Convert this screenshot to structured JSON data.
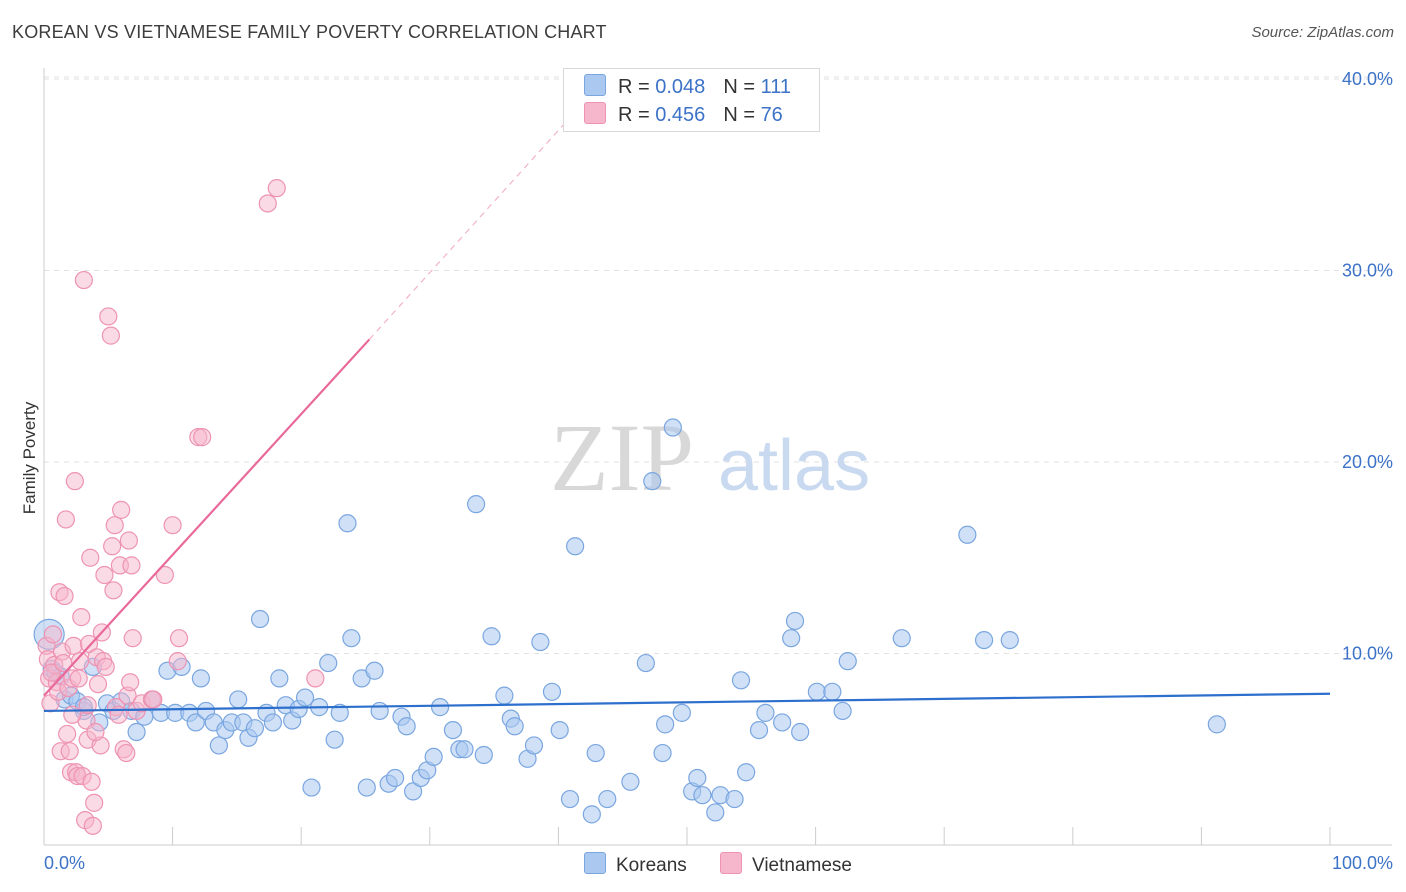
{
  "title": "KOREAN VS VIETNAMESE FAMILY POVERTY CORRELATION CHART",
  "source": "Source: ZipAtlas.com",
  "watermark": {
    "zip": "ZIP",
    "atlas": "atlas"
  },
  "legend": {
    "rows": [
      {
        "r_label": "R = ",
        "r_value": "0.048",
        "n_label": "N = ",
        "n_value": "111"
      },
      {
        "r_label": "R = ",
        "r_value": "0.456",
        "n_label": "N = ",
        "n_value": "76"
      }
    ]
  },
  "bottom_legend": {
    "koreans": "Koreans",
    "vietnamese": "Vietnamese"
  },
  "colors": {
    "korean_fill": "#aac8f0",
    "korean_stroke": "#7aa6e0",
    "korean_line": "#2d6fcc",
    "viet_fill": "#f6b6cb",
    "viet_stroke": "#ee93b3",
    "viet_line": "#e8699a",
    "axis_label": "#3c72c7",
    "grid": "#e2e2e2"
  },
  "chart_data": {
    "type": "scatter",
    "title": "KOREAN VS VIETNAMESE FAMILY POVERTY CORRELATION CHART",
    "xlabel": "",
    "ylabel": "Family Poverty",
    "xlim": [
      0,
      100
    ],
    "ylim": [
      0,
      42
    ],
    "x_tick_labels": [
      "0.0%",
      "100.0%"
    ],
    "y_ticks": [
      10,
      20,
      30,
      40
    ],
    "y_tick_labels": [
      "10.0%",
      "20.0%",
      "30.0%",
      "40.0%"
    ],
    "series": [
      {
        "name": "Koreans",
        "R": 0.048,
        "N": 111,
        "trend": {
          "x": [
            0,
            100
          ],
          "y": [
            7.0,
            7.9
          ]
        },
        "points": [
          [
            0.4,
            11.0
          ],
          [
            0.6,
            9.2
          ],
          [
            0.9,
            9.0
          ],
          [
            1.3,
            8.8
          ],
          [
            1.6,
            7.6
          ],
          [
            2.1,
            7.8
          ],
          [
            2.6,
            7.5
          ],
          [
            3.1,
            7.0
          ],
          [
            3.8,
            9.3
          ],
          [
            4.3,
            6.4
          ],
          [
            4.9,
            7.4
          ],
          [
            5.4,
            7.0
          ],
          [
            6.0,
            7.5
          ],
          [
            6.8,
            7.0
          ],
          [
            7.2,
            5.9
          ],
          [
            7.8,
            6.7
          ],
          [
            8.4,
            7.6
          ],
          [
            9.1,
            6.9
          ],
          [
            9.6,
            9.1
          ],
          [
            10.2,
            6.9
          ],
          [
            10.7,
            9.3
          ],
          [
            11.3,
            6.9
          ],
          [
            11.8,
            6.4
          ],
          [
            12.2,
            8.7
          ],
          [
            12.6,
            7.0
          ],
          [
            13.2,
            6.4
          ],
          [
            13.6,
            5.2
          ],
          [
            14.1,
            6.0
          ],
          [
            14.6,
            6.4
          ],
          [
            15.1,
            7.6
          ],
          [
            15.5,
            6.4
          ],
          [
            15.9,
            5.6
          ],
          [
            16.4,
            6.1
          ],
          [
            16.8,
            11.8
          ],
          [
            17.3,
            6.9
          ],
          [
            17.8,
            6.4
          ],
          [
            18.3,
            8.7
          ],
          [
            18.8,
            7.3
          ],
          [
            19.3,
            6.5
          ],
          [
            19.8,
            7.1
          ],
          [
            20.3,
            7.7
          ],
          [
            20.8,
            3.0
          ],
          [
            21.4,
            7.2
          ],
          [
            22.1,
            9.5
          ],
          [
            22.6,
            5.5
          ],
          [
            23.0,
            6.9
          ],
          [
            23.6,
            16.8
          ],
          [
            23.9,
            10.8
          ],
          [
            24.7,
            8.7
          ],
          [
            25.1,
            3.0
          ],
          [
            25.7,
            9.1
          ],
          [
            26.1,
            7.0
          ],
          [
            26.8,
            3.2
          ],
          [
            27.3,
            3.5
          ],
          [
            27.8,
            6.7
          ],
          [
            28.2,
            6.2
          ],
          [
            28.7,
            2.8
          ],
          [
            29.3,
            3.5
          ],
          [
            29.8,
            3.9
          ],
          [
            30.3,
            4.6
          ],
          [
            30.8,
            7.2
          ],
          [
            31.8,
            6.0
          ],
          [
            32.3,
            5.0
          ],
          [
            32.7,
            5.0
          ],
          [
            33.6,
            17.8
          ],
          [
            34.2,
            4.7
          ],
          [
            34.8,
            10.9
          ],
          [
            35.8,
            7.8
          ],
          [
            36.3,
            6.6
          ],
          [
            36.6,
            6.2
          ],
          [
            37.6,
            4.5
          ],
          [
            38.1,
            5.2
          ],
          [
            38.6,
            10.6
          ],
          [
            39.5,
            8.0
          ],
          [
            40.1,
            6.0
          ],
          [
            40.9,
            2.4
          ],
          [
            41.3,
            15.6
          ],
          [
            42.6,
            1.6
          ],
          [
            42.9,
            4.8
          ],
          [
            43.8,
            2.4
          ],
          [
            45.6,
            3.3
          ],
          [
            46.8,
            9.5
          ],
          [
            47.3,
            19.0
          ],
          [
            48.1,
            4.8
          ],
          [
            48.3,
            6.3
          ],
          [
            48.9,
            21.8
          ],
          [
            49.6,
            6.9
          ],
          [
            50.4,
            2.8
          ],
          [
            50.8,
            3.5
          ],
          [
            51.2,
            2.6
          ],
          [
            52.2,
            1.7
          ],
          [
            52.6,
            2.6
          ],
          [
            53.7,
            2.4
          ],
          [
            54.2,
            8.6
          ],
          [
            54.6,
            3.8
          ],
          [
            55.6,
            6.0
          ],
          [
            56.1,
            6.9
          ],
          [
            57.4,
            6.4
          ],
          [
            58.1,
            10.8
          ],
          [
            58.4,
            11.7
          ],
          [
            58.8,
            5.9
          ],
          [
            60.1,
            8.0
          ],
          [
            61.3,
            8.0
          ],
          [
            62.1,
            7.0
          ],
          [
            62.5,
            9.6
          ],
          [
            66.7,
            10.8
          ],
          [
            71.8,
            16.2
          ],
          [
            73.1,
            10.7
          ],
          [
            75.1,
            10.7
          ],
          [
            91.2,
            6.3
          ],
          [
            3.1,
            7.2
          ]
        ]
      },
      {
        "name": "Vietnamese",
        "R": 0.456,
        "N": 76,
        "trend": {
          "x": [
            0,
            25.3
          ],
          "y": [
            7.8,
            26.4
          ]
        },
        "trend_dashed": {
          "x": [
            25.3,
            42
          ],
          "y": [
            26.4,
            38.8
          ]
        },
        "points": [
          [
            0.2,
            10.4
          ],
          [
            0.3,
            9.7
          ],
          [
            0.4,
            8.7
          ],
          [
            0.5,
            7.4
          ],
          [
            0.7,
            11.0
          ],
          [
            0.8,
            9.4
          ],
          [
            1.0,
            8.5
          ],
          [
            1.1,
            8.0
          ],
          [
            1.2,
            13.2
          ],
          [
            1.3,
            4.9
          ],
          [
            1.4,
            10.1
          ],
          [
            1.6,
            13.0
          ],
          [
            1.7,
            17.0
          ],
          [
            1.8,
            5.8
          ],
          [
            1.9,
            8.2
          ],
          [
            2.0,
            4.9
          ],
          [
            2.1,
            3.8
          ],
          [
            2.2,
            8.7
          ],
          [
            2.3,
            10.4
          ],
          [
            2.4,
            19.0
          ],
          [
            2.5,
            3.8
          ],
          [
            2.6,
            3.6
          ],
          [
            2.7,
            8.7
          ],
          [
            2.8,
            9.6
          ],
          [
            2.9,
            11.9
          ],
          [
            3.0,
            3.6
          ],
          [
            3.1,
            29.5
          ],
          [
            3.2,
            1.3
          ],
          [
            3.3,
            6.5
          ],
          [
            3.4,
            5.5
          ],
          [
            3.5,
            10.5
          ],
          [
            3.6,
            15.0
          ],
          [
            3.7,
            3.3
          ],
          [
            3.8,
            1.0
          ],
          [
            3.9,
            2.2
          ],
          [
            4.1,
            9.8
          ],
          [
            4.2,
            8.4
          ],
          [
            4.4,
            5.2
          ],
          [
            4.5,
            11.1
          ],
          [
            4.6,
            9.6
          ],
          [
            4.7,
            14.1
          ],
          [
            4.8,
            9.3
          ],
          [
            5.0,
            27.6
          ],
          [
            5.2,
            26.6
          ],
          [
            5.3,
            15.6
          ],
          [
            5.4,
            13.3
          ],
          [
            5.5,
            16.7
          ],
          [
            5.6,
            7.2
          ],
          [
            5.9,
            14.6
          ],
          [
            6.0,
            17.5
          ],
          [
            6.2,
            5.0
          ],
          [
            6.4,
            4.8
          ],
          [
            6.5,
            7.8
          ],
          [
            6.6,
            15.9
          ],
          [
            6.7,
            8.5
          ],
          [
            6.8,
            14.6
          ],
          [
            6.9,
            10.8
          ],
          [
            7.2,
            7.0
          ],
          [
            7.6,
            7.4
          ],
          [
            8.4,
            7.6
          ],
          [
            8.5,
            7.6
          ],
          [
            9.4,
            14.1
          ],
          [
            10.0,
            16.7
          ],
          [
            10.4,
            9.6
          ],
          [
            10.5,
            10.8
          ],
          [
            12.0,
            21.3
          ],
          [
            12.3,
            21.3
          ],
          [
            17.4,
            33.5
          ],
          [
            18.1,
            34.3
          ],
          [
            21.1,
            8.7
          ],
          [
            0.6,
            9.0
          ],
          [
            1.5,
            9.5
          ],
          [
            2.2,
            6.8
          ],
          [
            3.4,
            7.3
          ],
          [
            4.0,
            5.9
          ],
          [
            5.8,
            6.8
          ]
        ]
      }
    ]
  }
}
